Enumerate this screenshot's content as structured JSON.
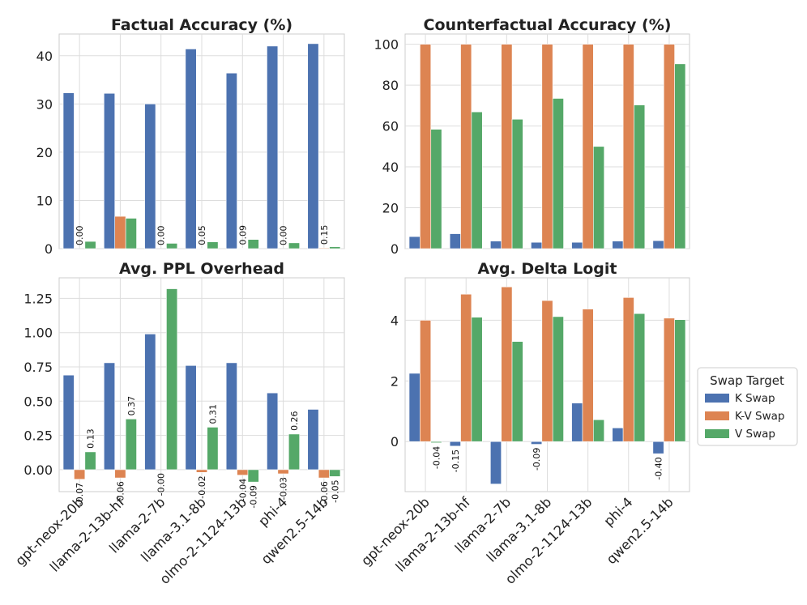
{
  "chart_data": [
    {
      "type": "bar",
      "title": "Factual Accuracy (%)",
      "categories": [
        "gpt-neox-20b",
        "llama-2-13b-hf",
        "llama-2-7b",
        "llama-3.1-8b",
        "olmo-2-1124-13b",
        "phi-4",
        "qwen2.5-14b"
      ],
      "ylim": [
        0,
        44.5
      ],
      "yticks": [
        0,
        10,
        20,
        30,
        40
      ],
      "series": [
        {
          "name": "K Swap",
          "values": [
            32.3,
            32.2,
            30.0,
            41.4,
            36.4,
            42.0,
            42.5
          ]
        },
        {
          "name": "K-V Swap",
          "values": [
            0.0,
            6.7,
            0.0,
            0.05,
            0.09,
            0.0,
            0.15
          ]
        },
        {
          "name": "V Swap",
          "values": [
            1.5,
            6.3,
            1.1,
            1.4,
            1.9,
            1.2,
            0.4
          ]
        }
      ],
      "data_labels": [
        {
          "category": "gpt-neox-20b",
          "series": "K-V Swap",
          "text": "0.00"
        },
        {
          "category": "llama-2-7b",
          "series": "K-V Swap",
          "text": "0.00"
        },
        {
          "category": "llama-3.1-8b",
          "series": "K-V Swap",
          "text": "0.05"
        },
        {
          "category": "olmo-2-1124-13b",
          "series": "K-V Swap",
          "text": "0.09"
        },
        {
          "category": "phi-4",
          "series": "K-V Swap",
          "text": "0.00"
        },
        {
          "category": "qwen2.5-14b",
          "series": "K-V Swap",
          "text": "0.15"
        }
      ]
    },
    {
      "type": "bar",
      "title": "Counterfactual Accuracy (%)",
      "categories": [
        "gpt-neox-20b",
        "llama-2-13b-hf",
        "llama-2-7b",
        "llama-3.1-8b",
        "olmo-2-1124-13b",
        "phi-4",
        "qwen2.5-14b"
      ],
      "ylim": [
        0,
        105
      ],
      "yticks": [
        0,
        20,
        40,
        60,
        80,
        100
      ],
      "series": [
        {
          "name": "K Swap",
          "values": [
            5.9,
            7.3,
            3.7,
            3.1,
            3.1,
            3.7,
            3.9
          ]
        },
        {
          "name": "K-V Swap",
          "values": [
            100,
            100,
            100,
            100,
            100,
            100,
            100
          ]
        },
        {
          "name": "V Swap",
          "values": [
            58.4,
            66.9,
            63.3,
            73.5,
            50.0,
            70.3,
            90.4
          ]
        }
      ],
      "data_labels": []
    },
    {
      "type": "bar",
      "title": "Avg. PPL Overhead",
      "categories": [
        "gpt-neox-20b",
        "llama-2-13b-hf",
        "llama-2-7b",
        "llama-3.1-8b",
        "olmo-2-1124-13b",
        "phi-4",
        "qwen2.5-14b"
      ],
      "ylim": [
        -0.16,
        1.4
      ],
      "yticks": [
        0.0,
        0.25,
        0.5,
        0.75,
        1.0,
        1.25
      ],
      "ytick_labels": [
        "0.00",
        "0.25",
        "0.50",
        "0.75",
        "1.00",
        "1.25"
      ],
      "series": [
        {
          "name": "K Swap",
          "values": [
            0.69,
            0.78,
            0.99,
            0.76,
            0.78,
            0.56,
            0.44
          ]
        },
        {
          "name": "K-V Swap",
          "values": [
            -0.07,
            -0.06,
            0.0,
            -0.02,
            -0.04,
            -0.03,
            -0.06
          ]
        },
        {
          "name": "V Swap",
          "values": [
            0.13,
            0.37,
            1.32,
            0.31,
            -0.09,
            0.26,
            -0.05
          ]
        }
      ],
      "data_labels": [
        {
          "category": "gpt-neox-20b",
          "series": "K-V Swap",
          "text": "-0.07"
        },
        {
          "category": "gpt-neox-20b",
          "series": "V Swap",
          "text": "0.13"
        },
        {
          "category": "llama-2-13b-hf",
          "series": "K-V Swap",
          "text": "-0.06"
        },
        {
          "category": "llama-2-13b-hf",
          "series": "V Swap",
          "text": "0.37"
        },
        {
          "category": "llama-2-7b",
          "series": "K-V Swap",
          "text": "-0.00"
        },
        {
          "category": "llama-3.1-8b",
          "series": "K-V Swap",
          "text": "-0.02"
        },
        {
          "category": "llama-3.1-8b",
          "series": "V Swap",
          "text": "0.31"
        },
        {
          "category": "olmo-2-1124-13b",
          "series": "K-V Swap",
          "text": "-0.04"
        },
        {
          "category": "olmo-2-1124-13b",
          "series": "V Swap",
          "text": "-0.09"
        },
        {
          "category": "phi-4",
          "series": "K-V Swap",
          "text": "-0.03"
        },
        {
          "category": "phi-4",
          "series": "V Swap",
          "text": "0.26"
        },
        {
          "category": "qwen2.5-14b",
          "series": "K-V Swap",
          "text": "-0.06"
        },
        {
          "category": "qwen2.5-14b",
          "series": "V Swap",
          "text": "-0.05"
        }
      ]
    },
    {
      "type": "bar",
      "title": "Avg. Delta Logit",
      "categories": [
        "gpt-neox-20b",
        "llama-2-13b-hf",
        "llama-2-7b",
        "llama-3.1-8b",
        "olmo-2-1124-13b",
        "phi-4",
        "qwen2.5-14b"
      ],
      "ylim": [
        -1.65,
        5.4
      ],
      "yticks": [
        0,
        2,
        4
      ],
      "series": [
        {
          "name": "K Swap",
          "values": [
            2.25,
            -0.15,
            -1.4,
            -0.09,
            1.27,
            0.45,
            -0.4
          ]
        },
        {
          "name": "K-V Swap",
          "values": [
            4.0,
            4.86,
            5.1,
            4.65,
            4.37,
            4.75,
            4.07
          ]
        },
        {
          "name": "V Swap",
          "values": [
            -0.04,
            4.1,
            3.3,
            4.12,
            0.72,
            4.22,
            4.02
          ]
        }
      ],
      "data_labels": [
        {
          "category": "gpt-neox-20b",
          "series": "V Swap",
          "text": "-0.04"
        },
        {
          "category": "llama-2-13b-hf",
          "series": "K Swap",
          "text": "-0.15"
        },
        {
          "category": "llama-3.1-8b",
          "series": "K Swap",
          "text": "-0.09"
        },
        {
          "category": "qwen2.5-14b",
          "series": "K Swap",
          "text": "-0.40"
        }
      ]
    }
  ],
  "legend": {
    "title": "Swap Target",
    "items": [
      {
        "label": "K Swap",
        "color": "#4c72b0"
      },
      {
        "label": "K-V Swap",
        "color": "#dd8452"
      },
      {
        "label": "V Swap",
        "color": "#55a868"
      }
    ]
  }
}
